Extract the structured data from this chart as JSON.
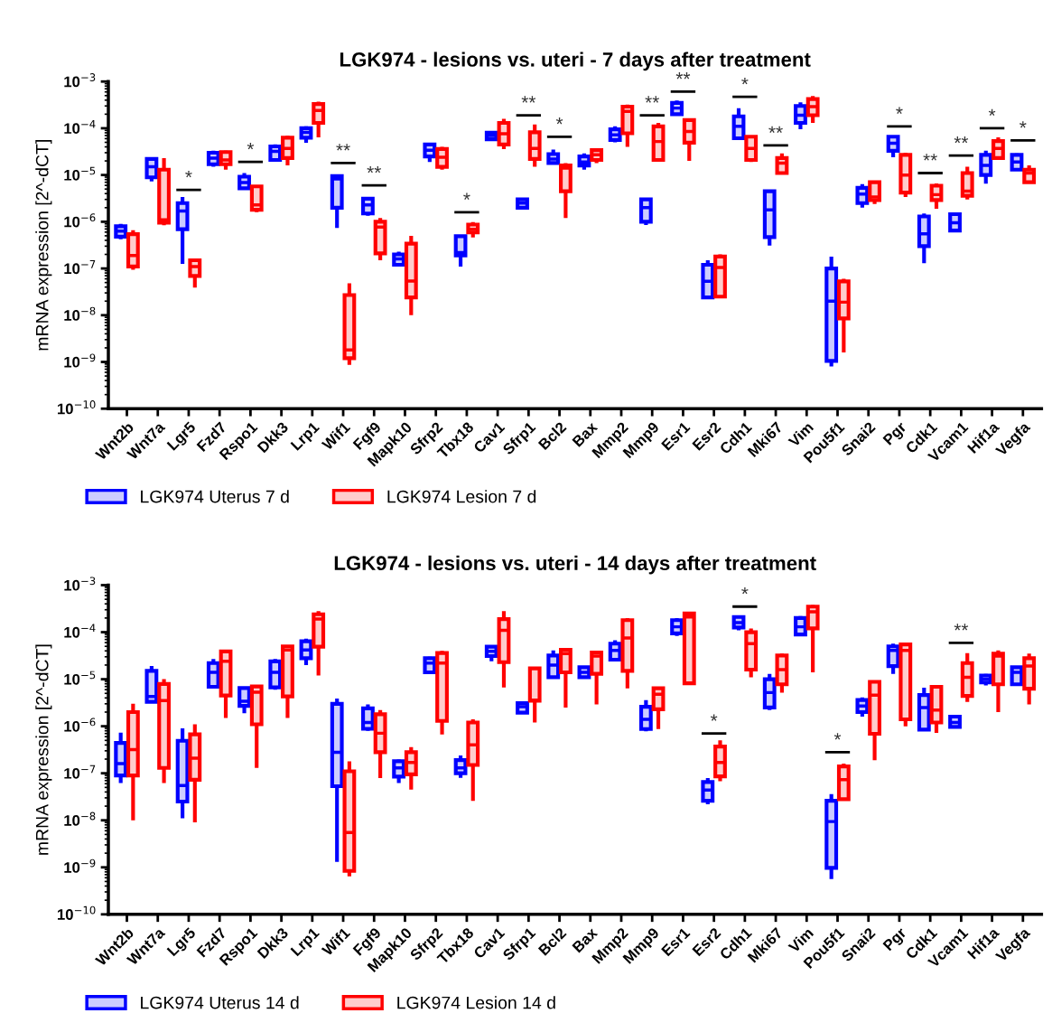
{
  "chart_data": [
    {
      "type": "box",
      "title": "LGK974 - lesions vs. uteri - 7 days after treatment",
      "ylabel": "mRNA expression [2^-dCT]",
      "log": "y",
      "legend": "bottom",
      "categories": [
        "Wnt2b",
        "Wnt7a",
        "Lgr5",
        "Fzd7",
        "Rspo1",
        "Dkk3",
        "Lrp1",
        "Wif1",
        "Fgf9",
        "Mapk10",
        "Sfrp2",
        "Tbx18",
        "Cav1",
        "Sfrp1",
        "Bcl2",
        "Bax",
        "Mmp2",
        "Mmp9",
        "Esr1",
        "Esr2",
        "Cdh1",
        "Mki67",
        "Vim",
        "Pou5f1",
        "Snai2",
        "Pgr",
        "Cdk1",
        "Vcam1",
        "Hif1a",
        "Vegfa"
      ],
      "ylim": [
        1e-10,
        0.001
      ],
      "yticks": [
        {
          "value": 1e-10,
          "label": "10$^{−10}$"
        },
        {
          "value": 1e-09,
          "label": "10$^{−9}$"
        },
        {
          "value": 1e-08,
          "label": "10$^{−8}$"
        },
        {
          "value": 1e-07,
          "label": "10$^{−7}$"
        },
        {
          "value": 1e-06,
          "label": "10$^{−6}$"
        },
        {
          "value": 1e-05,
          "label": "10$^{−5}$"
        },
        {
          "value": 0.0001,
          "label": "10$^{−4}$"
        },
        {
          "value": 0.001,
          "label": "10$^{−3}$"
        }
      ],
      "series": [
        {
          "name": "LGK974 Uterus 7 d",
          "color": "#0000ff",
          "boxes": [
            {
              "low": 4.2e-07,
              "q1": 4.8e-07,
              "median": 6.3e-07,
              "q3": 8e-07,
              "high": 9e-07
            },
            {
              "low": 7.3e-06,
              "q1": 8.9e-06,
              "median": 1.5e-05,
              "q3": 2.2e-05,
              "high": 2.3e-05
            },
            {
              "low": 1.25e-07,
              "q1": 6.9e-07,
              "median": 1.7e-06,
              "q3": 2.5e-06,
              "high": 3.4e-06
            },
            {
              "low": 1.5e-05,
              "q1": 1.7e-05,
              "median": 2.3e-05,
              "q3": 3e-05,
              "high": 3.3e-05
            },
            {
              "low": 4.9e-06,
              "q1": 5.2e-06,
              "median": 6.9e-06,
              "q3": 9.2e-06,
              "high": 1.1e-05
            },
            {
              "low": 2e-05,
              "q1": 2.1e-05,
              "median": 3.2e-05,
              "q3": 4.1e-05,
              "high": 4.5e-05
            },
            {
              "low": 4.9e-05,
              "q1": 6.3e-05,
              "median": 8.2e-05,
              "q3": 0.0001,
              "high": 0.00011
            },
            {
              "low": 7.4e-07,
              "q1": 2e-06,
              "median": 8.2e-06,
              "q3": 9.5e-06,
              "high": 1e-05
            },
            {
              "low": 1.35e-06,
              "q1": 1.5e-06,
              "median": 2.3e-06,
              "q3": 3.1e-06,
              "high": 3.4e-06
            },
            {
              "low": 1.2e-07,
              "q1": 1.2e-07,
              "median": 1.6e-07,
              "q3": 2e-07,
              "high": 2.3e-07
            },
            {
              "low": 1.9e-05,
              "q1": 2.5e-05,
              "median": 3.4e-05,
              "q3": 4.5e-05,
              "high": 4.9e-05
            },
            {
              "low": 1.1e-07,
              "q1": 1.9e-07,
              "median": 2.2e-07,
              "q3": 4.9e-07,
              "high": 5e-07
            },
            {
              "low": 5.8e-05,
              "q1": 5.8e-05,
              "median": 7e-05,
              "q3": 8e-05,
              "high": 8.2e-05
            },
            {
              "low": 1.9e-06,
              "q1": 2e-06,
              "median": 2.5e-06,
              "q3": 3e-06,
              "high": 3.1e-06
            },
            {
              "low": 1.8e-05,
              "q1": 1.8e-05,
              "median": 2.2e-05,
              "q3": 2.8e-05,
              "high": 3.5e-05
            },
            {
              "low": 1.3e-05,
              "q1": 1.6e-05,
              "median": 1.9e-05,
              "q3": 2.5e-05,
              "high": 2.9e-05
            },
            {
              "low": 5e-05,
              "q1": 5.6e-05,
              "median": 7.2e-05,
              "q3": 9.5e-05,
              "high": 0.00011
            },
            {
              "low": 8.5e-07,
              "q1": 1e-06,
              "median": 2e-06,
              "q3": 3e-06,
              "high": 3.2e-06
            },
            {
              "low": 0.0002,
              "q1": 0.0002,
              "median": 0.00027,
              "q3": 0.00035,
              "high": 0.00039
            },
            {
              "low": 2.4e-08,
              "q1": 2.4e-08,
              "median": 5.3e-08,
              "q3": 1.2e-07,
              "high": 1.5e-07
            },
            {
              "low": 6.1e-05,
              "q1": 6.1e-05,
              "median": 0.00011,
              "q3": 0.00018,
              "high": 0.00027
            },
            {
              "low": 3.1e-07,
              "q1": 4.7e-07,
              "median": 1.8e-06,
              "q3": 4.5e-06,
              "high": 4.6e-06
            },
            {
              "low": 9.5e-05,
              "q1": 0.00013,
              "median": 0.00019,
              "q3": 0.0003,
              "high": 0.00036
            },
            {
              "low": 8e-10,
              "q1": 1.05e-09,
              "median": 2e-08,
              "q3": 1e-07,
              "high": 1.8e-07
            },
            {
              "low": 2e-06,
              "q1": 2.5e-06,
              "median": 3.9e-06,
              "q3": 5.3e-06,
              "high": 6.4e-06
            },
            {
              "low": 2.4e-05,
              "q1": 3.3e-05,
              "median": 4.8e-05,
              "q3": 6.6e-05,
              "high": 6.9e-05
            },
            {
              "low": 1.3e-07,
              "q1": 3e-07,
              "median": 5.5e-07,
              "q3": 1.3e-06,
              "high": 1.5e-06
            },
            {
              "low": 6.5e-07,
              "q1": 6.5e-07,
              "median": 9.5e-07,
              "q3": 1.45e-06,
              "high": 1.5e-06
            },
            {
              "low": 6.5e-06,
              "q1": 1e-05,
              "median": 1.6e-05,
              "q3": 2.7e-05,
              "high": 3.3e-05
            },
            {
              "low": 1.3e-05,
              "q1": 1.3e-05,
              "median": 1.9e-05,
              "q3": 2.7e-05,
              "high": 2.9e-05
            }
          ]
        },
        {
          "name": "LGK974 Lesion 7 d",
          "color": "#ff0000",
          "boxes": [
            {
              "low": 9.4e-08,
              "q1": 1.1e-07,
              "median": 1.9e-07,
              "q3": 5.4e-07,
              "high": 6.6e-07
            },
            {
              "low": 8.4e-07,
              "q1": 9.5e-07,
              "median": 1.1e-06,
              "q3": 1.3e-05,
              "high": 2.3e-05
            },
            {
              "low": 3.9e-08,
              "q1": 6.9e-08,
              "median": 1.1e-07,
              "q3": 1.5e-07,
              "high": 1.6e-07
            },
            {
              "low": 1.3e-05,
              "q1": 1.7e-05,
              "median": 2.1e-05,
              "q3": 3.1e-05,
              "high": 3.3e-05
            },
            {
              "low": 1.6e-06,
              "q1": 1.8e-06,
              "median": 2.3e-06,
              "q3": 5.7e-06,
              "high": 5.9e-06
            },
            {
              "low": 1.6e-05,
              "q1": 2.3e-05,
              "median": 3.7e-05,
              "q3": 6.3e-05,
              "high": 6.9e-05
            },
            {
              "low": 6.4e-05,
              "q1": 0.00013,
              "median": 0.00024,
              "q3": 0.00033,
              "high": 0.00037
            },
            {
              "low": 8.7e-10,
              "q1": 1.2e-09,
              "median": 1.8e-09,
              "q3": 2.7e-08,
              "high": 4.8e-08
            },
            {
              "low": 1.5e-07,
              "q1": 2.1e-07,
              "median": 7.7e-07,
              "q3": 1e-06,
              "high": 1.2e-06
            },
            {
              "low": 1e-08,
              "q1": 2.4e-08,
              "median": 5.4e-08,
              "q3": 3.4e-07,
              "high": 5e-07
            },
            {
              "low": 1.3e-05,
              "q1": 1.5e-05,
              "median": 2.4e-05,
              "q3": 3.6e-05,
              "high": 4e-05
            },
            {
              "low": 4.6e-07,
              "q1": 5.9e-07,
              "median": 6.9e-07,
              "q3": 8.7e-07,
              "high": 9.8e-07
            },
            {
              "low": 3.6e-05,
              "q1": 4.5e-05,
              "median": 7.6e-05,
              "q3": 0.00013,
              "high": 0.00016
            },
            {
              "low": 1.5e-05,
              "q1": 2.2e-05,
              "median": 3.7e-05,
              "q3": 8.2e-05,
              "high": 0.00012
            },
            {
              "low": 1.2e-06,
              "q1": 4.5e-06,
              "median": 1.4e-05,
              "q3": 1.6e-05,
              "high": 1.8e-05
            },
            {
              "low": 1.8e-05,
              "q1": 2.1e-05,
              "median": 2.7e-05,
              "q3": 3.4e-05,
              "high": 3.5e-05
            },
            {
              "low": 4e-05,
              "q1": 7.8e-05,
              "median": 0.00023,
              "q3": 0.00029,
              "high": 0.00032
            },
            {
              "low": 2.1e-05,
              "q1": 2.1e-05,
              "median": 5.2e-05,
              "q3": 0.00011,
              "high": 0.00013
            },
            {
              "low": 2e-05,
              "q1": 4.9e-05,
              "median": 8.5e-05,
              "q3": 0.00015,
              "high": 0.00016
            },
            {
              "low": 2.5e-08,
              "q1": 2.5e-08,
              "median": 1.05e-07,
              "q3": 1.8e-07,
              "high": 2e-07
            },
            {
              "low": 1.9e-05,
              "q1": 2.1e-05,
              "median": 3.7e-05,
              "q3": 6.6e-05,
              "high": 7e-05
            },
            {
              "low": 1.1e-05,
              "q1": 1.1e-05,
              "median": 1.8e-05,
              "q3": 2.3e-05,
              "high": 2.9e-05
            },
            {
              "low": 0.00013,
              "q1": 0.00019,
              "median": 0.00029,
              "q3": 0.00042,
              "high": 0.00049
            },
            {
              "low": 1.6e-09,
              "q1": 8.5e-09,
              "median": 1.9e-08,
              "q3": 5.3e-08,
              "high": 6e-08
            },
            {
              "low": 2.4e-06,
              "q1": 2.9e-06,
              "median": 3.4e-06,
              "q3": 7e-06,
              "high": 7.2e-06
            },
            {
              "low": 3.4e-06,
              "q1": 4.2e-06,
              "median": 1e-05,
              "q3": 2.7e-05,
              "high": 3e-05
            },
            {
              "low": 1.9e-06,
              "q1": 2.9e-06,
              "median": 3.8e-06,
              "q3": 5.9e-06,
              "high": 6.6e-06
            },
            {
              "low": 3e-06,
              "q1": 3.6e-06,
              "median": 4.5e-06,
              "q3": 1.1e-05,
              "high": 1.5e-05
            },
            {
              "low": 2.1e-05,
              "q1": 2.3e-05,
              "median": 3.7e-05,
              "q3": 5.3e-05,
              "high": 6.4e-05
            },
            {
              "low": 7e-06,
              "q1": 7e-06,
              "median": 1.1e-05,
              "q3": 1.3e-05,
              "high": 1.6e-05
            }
          ]
        }
      ],
      "annotations": [
        "*",
        "*",
        "**",
        "**",
        "*",
        "**",
        "*",
        "**",
        "**",
        "*",
        "**",
        "*",
        "**",
        "**",
        "*",
        "*"
      ]
    },
    {
      "type": "box",
      "title": "LGK974 - lesions vs. uteri - 14 days after treatment",
      "ylabel": "mRNA expression [2^-dCT]",
      "log": "y",
      "legend": "bottom",
      "categories": [
        "Wnt2b",
        "Wnt7a",
        "Lgr5",
        "Fzd7",
        "Rspo1",
        "Dkk3",
        "Lrp1",
        "Wif1",
        "Fgf9",
        "Mapk10",
        "Sfrp2",
        "Tbx18",
        "Cav1",
        "Sfrp1",
        "Bcl2",
        "Bax",
        "Mmp2",
        "Mmp9",
        "Esr1",
        "Esr2",
        "Cdh1",
        "Mki67",
        "Vim",
        "Pou5f1",
        "Snai2",
        "Pgr",
        "Cdk1",
        "Vcam1",
        "Hif1a",
        "Vegfa"
      ],
      "ylim": [
        1e-10,
        0.001
      ],
      "yticks": [
        {
          "value": 1e-10,
          "label": "10$^{−10}$"
        },
        {
          "value": 1e-09,
          "label": "10$^{−9}$"
        },
        {
          "value": 1e-08,
          "label": "10$^{−8}$"
        },
        {
          "value": 1e-07,
          "label": "10$^{−7}$"
        },
        {
          "value": 1e-06,
          "label": "10$^{−6}$"
        },
        {
          "value": 1e-05,
          "label": "10$^{−5}$"
        },
        {
          "value": 0.0001,
          "label": "10$^{−4}$"
        },
        {
          "value": 0.001,
          "label": "10$^{−3}$"
        }
      ],
      "series": [
        {
          "name": "LGK974 Uterus 14 d",
          "color": "#0000ff",
          "boxes": [
            {
              "low": 6.2e-08,
              "q1": 9e-08,
              "median": 1.6e-07,
              "q3": 4.4e-07,
              "high": 7.3e-07
            },
            {
              "low": 3.3e-06,
              "q1": 3.3e-06,
              "median": 4.3e-06,
              "q3": 1.5e-05,
              "high": 1.9e-05
            },
            {
              "low": 1.1e-08,
              "q1": 2.5e-08,
              "median": 5.5e-08,
              "q3": 4.9e-07,
              "high": 9e-07
            },
            {
              "low": 6.9e-06,
              "q1": 6.9e-06,
              "median": 1.4e-05,
              "q3": 2.2e-05,
              "high": 2.7e-05
            },
            {
              "low": 1.9e-06,
              "q1": 2.7e-06,
              "median": 3.4e-06,
              "q3": 6.5e-06,
              "high": 6.7e-06
            },
            {
              "low": 6e-06,
              "q1": 6.7e-06,
              "median": 1.4e-05,
              "q3": 2.4e-05,
              "high": 2.7e-05
            },
            {
              "low": 2e-05,
              "q1": 2.8e-05,
              "median": 4.2e-05,
              "q3": 6.4e-05,
              "high": 7.3e-05
            },
            {
              "low": 1.3e-09,
              "q1": 5.3e-08,
              "median": 2.8e-07,
              "q3": 3e-06,
              "high": 3.9e-06
            },
            {
              "low": 8e-07,
              "q1": 8.8e-07,
              "median": 1.2e-06,
              "q3": 2.4e-06,
              "high": 2.9e-06
            },
            {
              "low": 6.2e-08,
              "q1": 8.5e-08,
              "median": 1.3e-07,
              "q3": 1.8e-07,
              "high": 1.95e-07
            },
            {
              "low": 1.3e-05,
              "q1": 1.4e-05,
              "median": 2.2e-05,
              "q3": 2.8e-05,
              "high": 3e-05
            },
            {
              "low": 8e-08,
              "q1": 1e-07,
              "median": 1.3e-07,
              "q3": 1.9e-07,
              "high": 2.4e-07
            },
            {
              "low": 2.4e-05,
              "q1": 3.1e-05,
              "median": 3.9e-05,
              "q3": 4.9e-05,
              "high": 5.3e-05
            },
            {
              "low": 1.9e-06,
              "q1": 1.95e-06,
              "median": 2.6e-06,
              "q3": 3.1e-06,
              "high": 3.3e-06
            },
            {
              "low": 1.1e-05,
              "q1": 1.1e-05,
              "median": 2e-05,
              "q3": 3.2e-05,
              "high": 4.1e-05
            },
            {
              "low": 1.1e-05,
              "q1": 1.1e-05,
              "median": 1.4e-05,
              "q3": 1.8e-05,
              "high": 1.9e-05
            },
            {
              "low": 2.4e-05,
              "q1": 2.6e-05,
              "median": 4.1e-05,
              "q3": 5.7e-05,
              "high": 6.7e-05
            },
            {
              "low": 7.8e-07,
              "q1": 8.7e-07,
              "median": 1.4e-06,
              "q3": 2.6e-06,
              "high": 3.6e-06
            },
            {
              "low": 8.3e-05,
              "q1": 9.4e-05,
              "median": 0.00013,
              "q3": 0.00018,
              "high": 0.0002
            },
            {
              "low": 2.2e-08,
              "q1": 2.6e-08,
              "median": 4.4e-08,
              "q3": 6.5e-08,
              "high": 7.9e-08
            },
            {
              "low": 0.00011,
              "q1": 0.000126,
              "median": 0.00016,
              "q3": 0.00021,
              "high": 0.00022
            },
            {
              "low": 2.2e-06,
              "q1": 2.5e-06,
              "median": 5.2e-06,
              "q3": 1e-05,
              "high": 1.3e-05
            },
            {
              "low": 8.9e-05,
              "q1": 8.9e-05,
              "median": 0.00013,
              "q3": 0.0002,
              "high": 0.00022
            },
            {
              "low": 5.6e-10,
              "q1": 9.7e-10,
              "median": 9.4e-09,
              "q3": 2.6e-08,
              "high": 3.6e-08
            },
            {
              "low": 1.6e-06,
              "q1": 2e-06,
              "median": 2.7e-06,
              "q3": 3.6e-06,
              "high": 4.1e-06
            },
            {
              "low": 1.3e-05,
              "q1": 1.9e-05,
              "median": 4.1e-05,
              "q3": 5e-05,
              "high": 5.7e-05
            },
            {
              "low": 8.5e-07,
              "q1": 8.5e-07,
              "median": 2.5e-06,
              "q3": 4.6e-06,
              "high": 6.6e-06
            },
            {
              "low": 9.7e-07,
              "q1": 9.7e-07,
              "median": 1.2e-06,
              "q3": 1.6e-06,
              "high": 1.7e-06
            },
            {
              "low": 7.4e-06,
              "q1": 8.5e-06,
              "median": 1e-05,
              "q3": 1.2e-05,
              "high": 1.3e-05
            },
            {
              "low": 7.8e-06,
              "q1": 7.8e-06,
              "median": 1.4e-05,
              "q3": 1.8e-05,
              "high": 1.9e-05
            }
          ]
        },
        {
          "name": "LGK974 Lesion 14 d",
          "color": "#ff0000",
          "boxes": [
            {
              "low": 1e-08,
              "q1": 9e-08,
              "median": 3.2e-07,
              "q3": 2e-06,
              "high": 3e-06
            },
            {
              "low": 6.2e-08,
              "q1": 1.3e-07,
              "median": 3.5e-06,
              "q3": 7.9e-06,
              "high": 1e-05
            },
            {
              "low": 9e-09,
              "q1": 7.3e-08,
              "median": 2.1e-07,
              "q3": 6.7e-07,
              "high": 1.1e-06
            },
            {
              "low": 1.5e-06,
              "q1": 4.5e-06,
              "median": 2.4e-05,
              "q3": 3.9e-05,
              "high": 4e-05
            },
            {
              "low": 1.3e-07,
              "q1": 1.1e-06,
              "median": 5.3e-06,
              "q3": 7e-06,
              "high": 7.3e-06
            },
            {
              "low": 1.5e-06,
              "q1": 4.3e-06,
              "median": 4.2e-05,
              "q3": 5e-05,
              "high": 5.1e-05
            },
            {
              "low": 1.2e-05,
              "q1": 4.9e-05,
              "median": 0.00019,
              "q3": 0.00024,
              "high": 0.00028
            },
            {
              "low": 6.4e-10,
              "q1": 8.4e-10,
              "median": 5.5e-09,
              "q3": 1.1e-07,
              "high": 1.8e-07
            },
            {
              "low": 7.9e-08,
              "q1": 2.8e-07,
              "median": 7.1e-07,
              "q3": 1.8e-06,
              "high": 2.2e-06
            },
            {
              "low": 4.5e-08,
              "q1": 9.5e-08,
              "median": 1.7e-07,
              "q3": 2.8e-07,
              "high": 3.6e-07
            },
            {
              "low": 6.7e-07,
              "q1": 1.3e-06,
              "median": 2.2e-05,
              "q3": 3.6e-05,
              "high": 4e-05
            },
            {
              "low": 2.6e-08,
              "q1": 1.5e-07,
              "median": 4e-07,
              "q3": 1.2e-06,
              "high": 1.4e-06
            },
            {
              "low": 6.7e-06,
              "q1": 2.3e-05,
              "median": 0.00011,
              "q3": 0.00019,
              "high": 0.00028
            },
            {
              "low": 1.2e-06,
              "q1": 3.5e-06,
              "median": 3.6e-06,
              "q3": 1.7e-05,
              "high": 1.7e-05
            },
            {
              "low": 2.5e-06,
              "q1": 1.4e-05,
              "median": 3.5e-05,
              "q3": 4.2e-05,
              "high": 4.6e-05
            },
            {
              "low": 2.9e-06,
              "q1": 1.3e-05,
              "median": 3.1e-05,
              "q3": 3.7e-05,
              "high": 3.9e-05
            },
            {
              "low": 6.4e-06,
              "q1": 1.5e-05,
              "median": 7.5e-05,
              "q3": 0.00018,
              "high": 0.0002
            },
            {
              "low": 8.7e-07,
              "q1": 2.3e-06,
              "median": 4.8e-06,
              "q3": 6.4e-06,
              "high": 6.6e-06
            },
            {
              "low": 8.2e-06,
              "q1": 8.2e-06,
              "median": 0.00021,
              "q3": 0.00025,
              "high": 0.00027
            },
            {
              "low": 6.8e-08,
              "q1": 8.6e-08,
              "median": 1.7e-07,
              "q3": 3.7e-07,
              "high": 5e-07
            },
            {
              "low": 1.1e-05,
              "q1": 1.6e-05,
              "median": 5.7e-05,
              "q3": 0.0001,
              "high": 0.00012
            },
            {
              "low": 5.2e-06,
              "q1": 7.8e-06,
              "median": 1.6e-05,
              "q3": 3.2e-05,
              "high": 3.5e-05
            },
            {
              "low": 1.4e-05,
              "q1": 0.00012,
              "median": 0.00027,
              "q3": 0.00035,
              "high": 0.00038
            },
            {
              "low": 2.8e-08,
              "q1": 2.8e-08,
              "median": 7.3e-08,
              "q3": 1.4e-07,
              "high": 1.6e-07
            },
            {
              "low": 1.9e-07,
              "q1": 6.9e-07,
              "median": 4.6e-06,
              "q3": 8.8e-06,
              "high": 9.2e-06
            },
            {
              "low": 1e-06,
              "q1": 1.4e-06,
              "median": 4.1e-05,
              "q3": 5.5e-05,
              "high": 6e-05
            },
            {
              "low": 7.2e-07,
              "q1": 1.2e-06,
              "median": 2.2e-06,
              "q3": 6.9e-06,
              "high": 7.2e-06
            },
            {
              "low": 3.3e-06,
              "q1": 4.4e-06,
              "median": 1.1e-05,
              "q3": 2.2e-05,
              "high": 3.6e-05
            },
            {
              "low": 2e-06,
              "q1": 7.8e-06,
              "median": 3.1e-05,
              "q3": 3.5e-05,
              "high": 4.1e-05
            },
            {
              "low": 2.9e-06,
              "q1": 6.3e-06,
              "median": 1.9e-05,
              "q3": 2.8e-05,
              "high": 3.5e-05
            }
          ]
        }
      ],
      "annotations": [
        "*",
        "*",
        "*",
        "**"
      ]
    }
  ]
}
